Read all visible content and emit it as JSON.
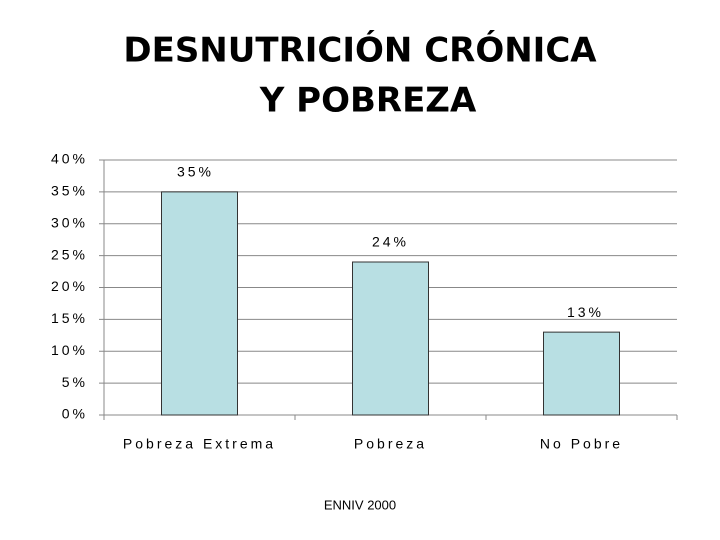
{
  "chart_data": {
    "type": "bar",
    "title": [
      "DESNUTRICIÓN CRÓNICA",
      "Y POBREZA"
    ],
    "categories": [
      "Pobreza Extrema",
      "Pobreza",
      "No Pobre"
    ],
    "values": [
      35,
      24,
      13
    ],
    "value_labels": [
      "35%",
      "24%",
      "13%"
    ],
    "color": "#b8dfe3",
    "ylim": [
      0,
      40
    ],
    "yticks": [
      {
        "value": 0,
        "label": "0%"
      },
      {
        "value": 5,
        "label": "5%"
      },
      {
        "value": 10,
        "label": "10%"
      },
      {
        "value": 15,
        "label": "15%"
      },
      {
        "value": 20,
        "label": "20%"
      },
      {
        "value": 25,
        "label": "25%"
      },
      {
        "value": 30,
        "label": "30%"
      },
      {
        "value": 35,
        "label": "35%"
      },
      {
        "value": 40,
        "label": "40%"
      }
    ],
    "grid": true,
    "source": "ENNIV 2000"
  }
}
